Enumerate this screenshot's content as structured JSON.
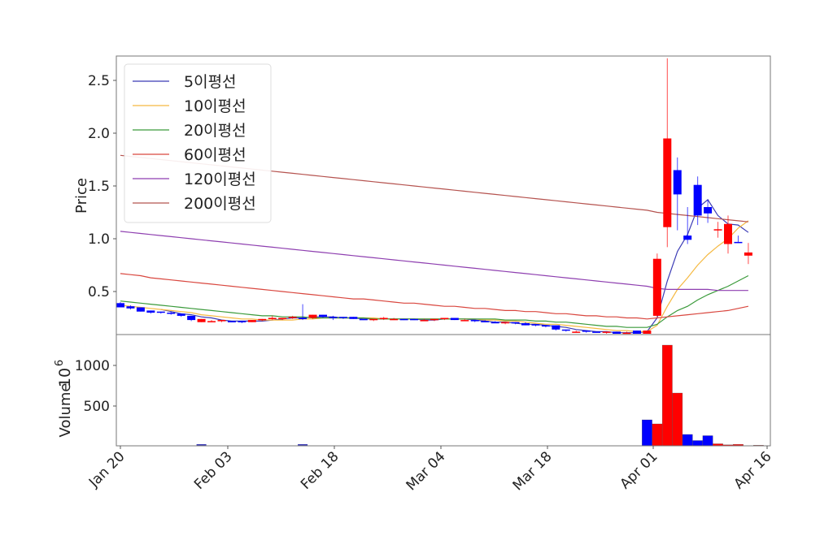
{
  "chart_data": [
    {
      "type": "candlestick",
      "title": "",
      "xlabel": "",
      "ylabel": "Price",
      "ylim": [
        0.09,
        2.73
      ],
      "yticks": [
        0.5,
        1.0,
        1.5,
        2.0,
        2.5
      ],
      "ytick_labels": [
        "0.5",
        "1.0",
        "1.5",
        "2.0",
        "2.5"
      ],
      "grid": false,
      "legend_position": "upper left",
      "up_color": "#ff0000",
      "down_color": "#0000ff",
      "candles": [
        {
          "date": "Jan 20",
          "o": 0.39,
          "h": 0.4,
          "l": 0.35,
          "c": 0.35
        },
        {
          "date": "Jan 21",
          "o": 0.36,
          "h": 0.37,
          "l": 0.33,
          "c": 0.34
        },
        {
          "date": "Jan 22",
          "o": 0.35,
          "h": 0.35,
          "l": 0.31,
          "c": 0.31
        },
        {
          "date": "Jan 23",
          "o": 0.32,
          "h": 0.32,
          "l": 0.29,
          "c": 0.3
        },
        {
          "date": "Jan 24",
          "o": 0.31,
          "h": 0.31,
          "l": 0.29,
          "c": 0.3
        },
        {
          "date": "Jan 27",
          "o": 0.3,
          "h": 0.31,
          "l": 0.28,
          "c": 0.29
        },
        {
          "date": "Jan 28",
          "o": 0.29,
          "h": 0.29,
          "l": 0.26,
          "c": 0.27
        },
        {
          "date": "Jan 29",
          "o": 0.27,
          "h": 0.27,
          "l": 0.22,
          "c": 0.23
        },
        {
          "date": "Jan 30",
          "o": 0.21,
          "h": 0.24,
          "l": 0.21,
          "c": 0.24
        },
        {
          "date": "Jan 31",
          "o": 0.22,
          "h": 0.23,
          "l": 0.21,
          "c": 0.22
        },
        {
          "date": "Feb 03",
          "o": 0.22,
          "h": 0.23,
          "l": 0.21,
          "c": 0.23
        },
        {
          "date": "Feb 04",
          "o": 0.22,
          "h": 0.22,
          "l": 0.21,
          "c": 0.21
        },
        {
          "date": "Feb 05",
          "o": 0.22,
          "h": 0.22,
          "l": 0.2,
          "c": 0.21
        },
        {
          "date": "Feb 06",
          "o": 0.21,
          "h": 0.23,
          "l": 0.21,
          "c": 0.23
        },
        {
          "date": "Feb 07",
          "o": 0.23,
          "h": 0.24,
          "l": 0.22,
          "c": 0.24
        },
        {
          "date": "Feb 10",
          "o": 0.24,
          "h": 0.27,
          "l": 0.23,
          "c": 0.25
        },
        {
          "date": "Feb 11",
          "o": 0.24,
          "h": 0.25,
          "l": 0.23,
          "c": 0.25
        },
        {
          "date": "Feb 12",
          "o": 0.25,
          "h": 0.27,
          "l": 0.24,
          "c": 0.26
        },
        {
          "date": "Feb 13",
          "o": 0.25,
          "h": 0.38,
          "l": 0.23,
          "c": 0.24
        },
        {
          "date": "Feb 14",
          "o": 0.25,
          "h": 0.28,
          "l": 0.24,
          "c": 0.28
        },
        {
          "date": "Feb 17",
          "o": 0.28,
          "h": 0.28,
          "l": 0.25,
          "c": 0.26
        },
        {
          "date": "Feb 18",
          "o": 0.26,
          "h": 0.27,
          "l": 0.23,
          "c": 0.25
        },
        {
          "date": "Feb 19",
          "o": 0.26,
          "h": 0.26,
          "l": 0.24,
          "c": 0.25
        },
        {
          "date": "Feb 20",
          "o": 0.26,
          "h": 0.26,
          "l": 0.24,
          "c": 0.24
        },
        {
          "date": "Feb 21",
          "o": 0.24,
          "h": 0.24,
          "l": 0.23,
          "c": 0.23
        },
        {
          "date": "Feb 24",
          "o": 0.23,
          "h": 0.24,
          "l": 0.22,
          "c": 0.24
        },
        {
          "date": "Feb 25",
          "o": 0.24,
          "h": 0.26,
          "l": 0.23,
          "c": 0.25
        },
        {
          "date": "Feb 26",
          "o": 0.24,
          "h": 0.25,
          "l": 0.23,
          "c": 0.24
        },
        {
          "date": "Feb 27",
          "o": 0.24,
          "h": 0.24,
          "l": 0.23,
          "c": 0.23
        },
        {
          "date": "Feb 28",
          "o": 0.24,
          "h": 0.24,
          "l": 0.23,
          "c": 0.23
        },
        {
          "date": "Mar 03",
          "o": 0.23,
          "h": 0.24,
          "l": 0.22,
          "c": 0.23
        },
        {
          "date": "Mar 04",
          "o": 0.23,
          "h": 0.24,
          "l": 0.22,
          "c": 0.24
        },
        {
          "date": "Mar 05",
          "o": 0.24,
          "h": 0.25,
          "l": 0.23,
          "c": 0.25
        },
        {
          "date": "Mar 06",
          "o": 0.25,
          "h": 0.25,
          "l": 0.23,
          "c": 0.23
        },
        {
          "date": "Mar 07",
          "o": 0.23,
          "h": 0.24,
          "l": 0.22,
          "c": 0.23
        },
        {
          "date": "Mar 10",
          "o": 0.23,
          "h": 0.23,
          "l": 0.21,
          "c": 0.22
        },
        {
          "date": "Mar 11",
          "o": 0.22,
          "h": 0.23,
          "l": 0.21,
          "c": 0.21
        },
        {
          "date": "Mar 12",
          "o": 0.21,
          "h": 0.22,
          "l": 0.2,
          "c": 0.2
        },
        {
          "date": "Mar 13",
          "o": 0.2,
          "h": 0.21,
          "l": 0.19,
          "c": 0.21
        },
        {
          "date": "Mar 14",
          "o": 0.21,
          "h": 0.21,
          "l": 0.19,
          "c": 0.2
        },
        {
          "date": "Mar 17",
          "o": 0.2,
          "h": 0.21,
          "l": 0.18,
          "c": 0.18
        },
        {
          "date": "Mar 18",
          "o": 0.19,
          "h": 0.19,
          "l": 0.17,
          "c": 0.18
        },
        {
          "date": "Mar 19",
          "o": 0.18,
          "h": 0.18,
          "l": 0.16,
          "c": 0.17
        },
        {
          "date": "Mar 20",
          "o": 0.18,
          "h": 0.18,
          "l": 0.13,
          "c": 0.14
        },
        {
          "date": "Mar 21",
          "o": 0.14,
          "h": 0.14,
          "l": 0.12,
          "c": 0.13
        },
        {
          "date": "Mar 24",
          "o": 0.12,
          "h": 0.13,
          "l": 0.11,
          "c": 0.12
        },
        {
          "date": "Mar 25",
          "o": 0.13,
          "h": 0.13,
          "l": 0.11,
          "c": 0.12
        },
        {
          "date": "Mar 26",
          "o": 0.12,
          "h": 0.12,
          "l": 0.11,
          "c": 0.11
        },
        {
          "date": "Mar 27",
          "o": 0.11,
          "h": 0.12,
          "l": 0.1,
          "c": 0.12
        },
        {
          "date": "Mar 28",
          "o": 0.12,
          "h": 0.12,
          "l": 0.1,
          "c": 0.1
        },
        {
          "date": "Mar 29",
          "o": 0.11,
          "h": 0.12,
          "l": 0.1,
          "c": 0.11
        },
        {
          "date": "Mar 31",
          "o": 0.13,
          "h": 0.13,
          "l": 0.1,
          "c": 0.1
        },
        {
          "date": "Apr 01",
          "o": 0.1,
          "h": 0.13,
          "l": 0.1,
          "c": 0.13
        },
        {
          "date": "Apr 02",
          "o": 0.27,
          "h": 0.86,
          "l": 0.26,
          "c": 0.81
        },
        {
          "date": "Apr 03",
          "o": 1.11,
          "h": 2.71,
          "l": 0.92,
          "c": 1.95
        },
        {
          "date": "Apr 04",
          "o": 1.65,
          "h": 1.77,
          "l": 1.08,
          "c": 1.42
        },
        {
          "date": "Apr 07",
          "o": 1.03,
          "h": 1.3,
          "l": 0.95,
          "c": 0.99
        },
        {
          "date": "Apr 08",
          "o": 1.51,
          "h": 1.59,
          "l": 1.13,
          "c": 1.22
        },
        {
          "date": "Apr 09",
          "o": 1.3,
          "h": 1.37,
          "l": 1.15,
          "c": 1.24
        },
        {
          "date": "Apr 10",
          "o": 1.08,
          "h": 1.16,
          "l": 1.01,
          "c": 1.09
        },
        {
          "date": "Apr 11",
          "o": 0.95,
          "h": 1.22,
          "l": 0.86,
          "c": 1.14
        },
        {
          "date": "Apr 14",
          "o": 0.97,
          "h": 1.03,
          "l": 0.96,
          "c": 0.96
        },
        {
          "date": "Apr 15",
          "o": 0.84,
          "h": 0.96,
          "l": 0.76,
          "c": 0.87
        }
      ],
      "moving_averages": [
        {
          "name": "5이평선",
          "color": "#3b3bb5",
          "values": [
            null,
            null,
            null,
            null,
            0.33,
            0.31,
            0.29,
            0.28,
            0.26,
            0.25,
            0.23,
            0.22,
            0.22,
            0.22,
            0.22,
            0.23,
            0.24,
            0.25,
            0.25,
            0.26,
            0.26,
            0.26,
            0.25,
            0.25,
            0.24,
            0.24,
            0.24,
            0.24,
            0.24,
            0.24,
            0.23,
            0.23,
            0.24,
            0.24,
            0.24,
            0.23,
            0.22,
            0.21,
            0.21,
            0.2,
            0.19,
            0.19,
            0.18,
            0.17,
            0.16,
            0.14,
            0.13,
            0.12,
            0.12,
            0.11,
            0.11,
            0.11,
            0.12,
            0.25,
            0.6,
            0.88,
            1.04,
            1.29,
            1.37,
            1.22,
            1.14,
            1.13,
            1.06
          ]
        },
        {
          "name": "10이평선",
          "color": "#f5b942",
          "values": [
            0.37,
            0.36,
            0.35,
            0.34,
            0.33,
            0.32,
            0.31,
            0.3,
            0.28,
            0.27,
            0.26,
            0.25,
            0.24,
            0.24,
            0.23,
            0.23,
            0.23,
            0.23,
            0.24,
            0.24,
            0.25,
            0.25,
            0.25,
            0.25,
            0.25,
            0.25,
            0.24,
            0.24,
            0.24,
            0.24,
            0.24,
            0.24,
            0.24,
            0.24,
            0.24,
            0.24,
            0.23,
            0.23,
            0.22,
            0.22,
            0.21,
            0.2,
            0.19,
            0.19,
            0.18,
            0.17,
            0.16,
            0.15,
            0.14,
            0.13,
            0.13,
            0.12,
            0.12,
            0.18,
            0.36,
            0.52,
            0.63,
            0.75,
            0.85,
            0.93,
            1.0,
            1.1,
            1.17
          ]
        },
        {
          "name": "20이평선",
          "color": "#3a9a3a",
          "values": [
            0.41,
            0.4,
            0.39,
            0.38,
            0.37,
            0.36,
            0.35,
            0.34,
            0.33,
            0.32,
            0.31,
            0.3,
            0.29,
            0.28,
            0.27,
            0.27,
            0.26,
            0.26,
            0.26,
            0.25,
            0.25,
            0.25,
            0.25,
            0.25,
            0.25,
            0.24,
            0.24,
            0.24,
            0.24,
            0.24,
            0.24,
            0.24,
            0.24,
            0.24,
            0.24,
            0.24,
            0.24,
            0.24,
            0.23,
            0.23,
            0.23,
            0.22,
            0.22,
            0.21,
            0.21,
            0.2,
            0.19,
            0.18,
            0.17,
            0.17,
            0.16,
            0.16,
            0.16,
            0.19,
            0.26,
            0.32,
            0.36,
            0.42,
            0.47,
            0.51,
            0.55,
            0.6,
            0.65
          ]
        },
        {
          "name": "60이평선",
          "color": "#d9473f",
          "values": [
            0.67,
            0.66,
            0.65,
            0.63,
            0.62,
            0.61,
            0.6,
            0.59,
            0.58,
            0.57,
            0.56,
            0.55,
            0.54,
            0.53,
            0.52,
            0.51,
            0.5,
            0.49,
            0.48,
            0.47,
            0.46,
            0.45,
            0.44,
            0.43,
            0.43,
            0.42,
            0.41,
            0.4,
            0.39,
            0.39,
            0.38,
            0.37,
            0.36,
            0.36,
            0.35,
            0.34,
            0.34,
            0.33,
            0.32,
            0.32,
            0.31,
            0.31,
            0.3,
            0.29,
            0.29,
            0.28,
            0.27,
            0.27,
            0.26,
            0.26,
            0.25,
            0.25,
            0.24,
            0.25,
            0.26,
            0.27,
            0.28,
            0.29,
            0.3,
            0.31,
            0.32,
            0.34,
            0.36
          ]
        },
        {
          "name": "120이평선",
          "color": "#8e3fb0",
          "values": [
            1.07,
            1.06,
            1.05,
            1.04,
            1.03,
            1.02,
            1.01,
            1.0,
            0.99,
            0.98,
            0.97,
            0.96,
            0.95,
            0.94,
            0.93,
            0.92,
            0.91,
            0.9,
            0.89,
            0.88,
            0.87,
            0.86,
            0.85,
            0.84,
            0.83,
            0.82,
            0.81,
            0.8,
            0.79,
            0.78,
            0.77,
            0.76,
            0.75,
            0.74,
            0.73,
            0.72,
            0.71,
            0.7,
            0.69,
            0.68,
            0.67,
            0.66,
            0.65,
            0.64,
            0.63,
            0.62,
            0.61,
            0.6,
            0.59,
            0.58,
            0.57,
            0.56,
            0.55,
            0.53,
            0.52,
            0.52,
            0.52,
            0.52,
            0.52,
            0.51,
            0.51,
            0.51,
            0.51
          ]
        },
        {
          "name": "200이평선",
          "color": "#b5534f",
          "values": [
            1.79,
            1.78,
            1.77,
            1.76,
            1.75,
            1.74,
            1.73,
            1.72,
            1.71,
            1.7,
            1.69,
            1.68,
            1.67,
            1.66,
            1.65,
            1.64,
            1.63,
            1.62,
            1.61,
            1.6,
            1.59,
            1.58,
            1.57,
            1.56,
            1.55,
            1.54,
            1.53,
            1.52,
            1.51,
            1.5,
            1.49,
            1.48,
            1.47,
            1.46,
            1.45,
            1.44,
            1.43,
            1.42,
            1.41,
            1.4,
            1.39,
            1.38,
            1.37,
            1.36,
            1.35,
            1.34,
            1.33,
            1.32,
            1.31,
            1.3,
            1.29,
            1.28,
            1.27,
            1.25,
            1.24,
            1.23,
            1.22,
            1.21,
            1.2,
            1.19,
            1.18,
            1.17,
            1.16
          ]
        }
      ]
    },
    {
      "type": "bar",
      "title": "",
      "ylabel": "Volume",
      "ylabel_exponent": "10^6",
      "ylim": [
        0,
        1370
      ],
      "yticks": [
        500,
        1000
      ],
      "ytick_labels": [
        "500",
        "1000"
      ],
      "xtick_labels": [
        "Jan 20",
        "Feb 03",
        "Feb 18",
        "Mar 04",
        "Mar 18",
        "Apr 01",
        "Apr 16"
      ],
      "grid": false,
      "note": "Volume bars colored red for up days, blue for down days; near-zero before April",
      "series": [
        {
          "name": "Volume",
          "values_tail": [
            {
              "date": "Mar 31",
              "v": 4,
              "color": "#0000ff"
            },
            {
              "date": "Apr 01",
              "v": 330,
              "color": "#0000ff"
            },
            {
              "date": "Apr 02",
              "v": 280,
              "color": "#ff0000"
            },
            {
              "date": "Apr 03",
              "v": 1250,
              "color": "#ff0000"
            },
            {
              "date": "Apr 04",
              "v": 660,
              "color": "#ff0000"
            },
            {
              "date": "Apr 07",
              "v": 150,
              "color": "#0000ff"
            },
            {
              "date": "Apr 08",
              "v": 75,
              "color": "#0000ff"
            },
            {
              "date": "Apr 09",
              "v": 135,
              "color": "#0000ff"
            },
            {
              "date": "Apr 10",
              "v": 35,
              "color": "#ff0000"
            },
            {
              "date": "Apr 11",
              "v": 22,
              "color": "#ff0000"
            },
            {
              "date": "Apr 14",
              "v": 28,
              "color": "#ff0000"
            },
            {
              "date": "Apr 15",
              "v": 8,
              "color": "#0000ff"
            },
            {
              "date": "Apr 16",
              "v": 18,
              "color": "#ff0000"
            }
          ]
        }
      ]
    }
  ],
  "labels": {
    "price_axis": "Price",
    "volume_axis": "Volume",
    "volume_exp_base": "10",
    "volume_exp_power": "6"
  }
}
